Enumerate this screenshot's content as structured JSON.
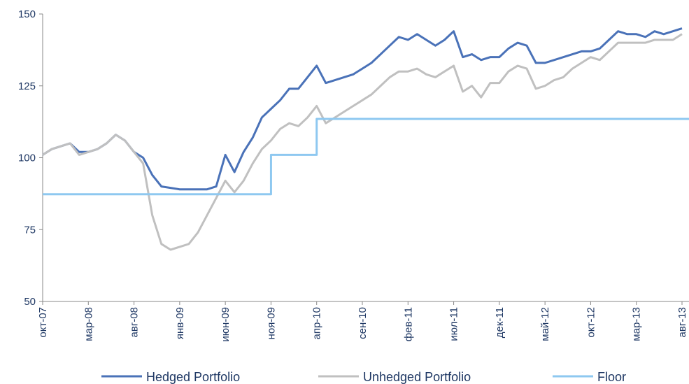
{
  "chart_data": {
    "type": "line",
    "categories": [
      "окт-07",
      null,
      null,
      null,
      null,
      "мар-08",
      null,
      null,
      null,
      null,
      "авг-08",
      null,
      null,
      null,
      null,
      "янв-09",
      null,
      null,
      null,
      null,
      "июн-09",
      null,
      null,
      null,
      null,
      "ноя-09",
      null,
      null,
      null,
      null,
      "апр-10",
      null,
      null,
      null,
      null,
      "сен-10",
      null,
      null,
      null,
      null,
      "фев-11",
      null,
      null,
      null,
      null,
      "июл-11",
      null,
      null,
      null,
      null,
      "дек-11",
      null,
      null,
      null,
      null,
      "май-12",
      null,
      null,
      null,
      null,
      "окт-12",
      null,
      null,
      null,
      null,
      "мар-13",
      null,
      null,
      null,
      null,
      "авг-13"
    ],
    "series": [
      {
        "name": "Hedged Portfolio",
        "color": "#4a72b8",
        "values": [
          101,
          103,
          104,
          105,
          102,
          102,
          103,
          105,
          108,
          106,
          102,
          100,
          94,
          90,
          89.5,
          89,
          89,
          89,
          89,
          90,
          101,
          95,
          102,
          107,
          114,
          117,
          120,
          124,
          124,
          128,
          132,
          126,
          127,
          128,
          129,
          131,
          133,
          136,
          139,
          142,
          141,
          143,
          141,
          139,
          141,
          144,
          135,
          136,
          134,
          135,
          135,
          138,
          140,
          139,
          133,
          133,
          134,
          135,
          136,
          137,
          137,
          138,
          141,
          144,
          143,
          143,
          142,
          144,
          143,
          144,
          145
        ]
      },
      {
        "name": "Unhedged Portfolio",
        "color": "#c0c0c0",
        "values": [
          101,
          103,
          104,
          105,
          101,
          102,
          103,
          105,
          108,
          106,
          102,
          98,
          80,
          70,
          68,
          69,
          70,
          74,
          80,
          86,
          92,
          88,
          92,
          98,
          103,
          106,
          110,
          112,
          111,
          114,
          118,
          112,
          114,
          116,
          118,
          120,
          122,
          125,
          128,
          130,
          130,
          131,
          129,
          128,
          130,
          132,
          123,
          125,
          121,
          126,
          126,
          130,
          132,
          131,
          124,
          125,
          127,
          128,
          131,
          133,
          135,
          134,
          137,
          140,
          140,
          140,
          140,
          141,
          141,
          141,
          143
        ]
      },
      {
        "name": "Floor",
        "color": "#8ec8f0",
        "step": true,
        "values": [
          87.3,
          87.3,
          87.3,
          87.3,
          87.3,
          87.3,
          87.3,
          87.3,
          87.3,
          87.3,
          87.3,
          87.3,
          87.3,
          87.3,
          87.3,
          87.3,
          87.3,
          87.3,
          87.3,
          87.3,
          87.3,
          87.3,
          87.3,
          87.3,
          87.3,
          101,
          101,
          101,
          101,
          101,
          113.5,
          113.5,
          113.5,
          113.5,
          113.5,
          113.5,
          113.5,
          113.5,
          113.5,
          113.5,
          113.5,
          113.5,
          113.5,
          113.5,
          113.5,
          113.5,
          113.5,
          113.5,
          113.5,
          113.5,
          113.5,
          113.5,
          113.5,
          113.5,
          113.5,
          113.5,
          113.5,
          113.5,
          113.5,
          113.5,
          113.5,
          113.5,
          113.5,
          113.5,
          113.5,
          113.5,
          113.5,
          113.5,
          113.5,
          113.5,
          113.5
        ]
      }
    ],
    "ylim": [
      50,
      150
    ],
    "yticks": [
      50,
      75,
      100,
      125,
      150
    ]
  }
}
